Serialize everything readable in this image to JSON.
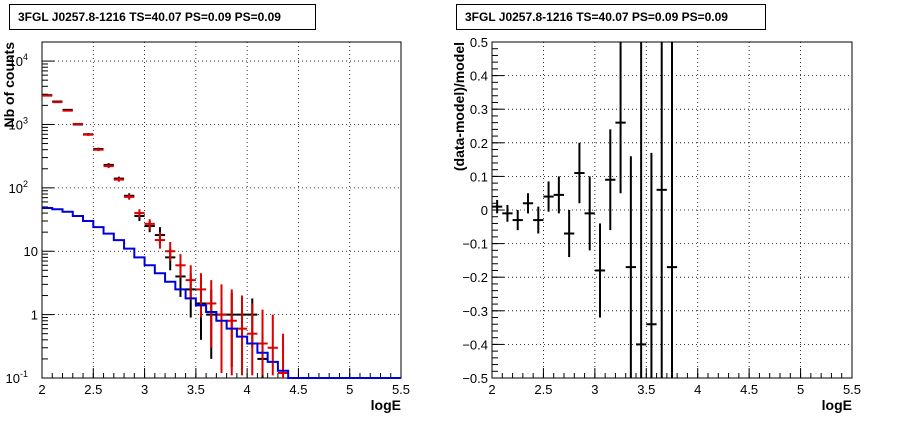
{
  "chart_data": [
    {
      "type": "line",
      "title": "3FGL J0257.8-1216 TS=40.07 PS=0.09 PS=0.09",
      "xlabel": "logE",
      "ylabel": "Nb of counts",
      "xlim": [
        2,
        5.5
      ],
      "ylim": [
        0.1,
        20000
      ],
      "yscale": "log",
      "grid": true,
      "x_ticks": [
        "2",
        "2.5",
        "3",
        "3.5",
        "4",
        "4.5",
        "5",
        "5.5"
      ],
      "y_ticks": [
        {
          "value": 0.1,
          "label": "10",
          "exp": "-1"
        },
        {
          "value": 1,
          "label": "1",
          "exp": ""
        },
        {
          "value": 10,
          "label": "10",
          "exp": ""
        },
        {
          "value": 100,
          "label": "10",
          "exp": "2"
        },
        {
          "value": 1000,
          "label": "10",
          "exp": "3"
        },
        {
          "value": 10000,
          "label": "10",
          "exp": "4"
        }
      ],
      "series": [
        {
          "kind": "errorbar",
          "color": "#000000",
          "x": [
            2.05,
            2.15,
            2.25,
            2.35,
            2.45,
            2.55,
            2.65,
            2.75,
            2.85,
            2.95,
            3.05,
            3.15,
            3.25,
            3.35,
            3.45,
            3.55,
            3.65,
            3.75,
            3.85,
            3.95,
            4.05,
            4.15
          ],
          "y": [
            2900,
            2300,
            1700,
            1000,
            700,
            410,
            230,
            140,
            75,
            36,
            25,
            18,
            8,
            4,
            2.5,
            1.5,
            1,
            1,
            1,
            1,
            1,
            0.2
          ],
          "ylo": [
            2850,
            2250,
            1650,
            970,
            670,
            390,
            215,
            130,
            68,
            30,
            20,
            13,
            5,
            1.9,
            0.9,
            0.4,
            0.2,
            0.15,
            0.15,
            0.4,
            0.3,
            0.1
          ],
          "yhi": [
            2950,
            2350,
            1750,
            1030,
            730,
            430,
            245,
            150,
            82,
            42,
            30,
            24,
            11,
            6,
            4.5,
            3.5,
            2.5,
            2.2,
            2.2,
            1.8,
            1.8,
            0.5
          ]
        },
        {
          "kind": "errorbar",
          "color": "#dd0000",
          "x": [
            2.05,
            2.15,
            2.25,
            2.35,
            2.45,
            2.55,
            2.65,
            2.75,
            2.85,
            2.95,
            3.05,
            3.15,
            3.25,
            3.35,
            3.45,
            3.55,
            3.65,
            3.75,
            3.85,
            3.95,
            4.05,
            4.15,
            4.25,
            4.35
          ],
          "y": [
            2850,
            2250,
            1650,
            1020,
            690,
            400,
            220,
            135,
            72,
            40,
            27,
            15,
            10,
            6,
            3.5,
            2.5,
            1.5,
            1,
            0.8,
            0.6,
            0.5,
            0.35,
            0.3,
            0.12
          ],
          "ylo": [
            2800,
            2200,
            1600,
            990,
            660,
            380,
            205,
            125,
            65,
            34,
            22,
            11,
            7,
            3.8,
            1.7,
            0.9,
            0.3,
            0.12,
            0.11,
            0.11,
            0.11,
            0.11,
            0.11,
            0.1
          ],
          "yhi": [
            2900,
            2300,
            1700,
            1050,
            720,
            420,
            235,
            145,
            79,
            46,
            32,
            20,
            14,
            9,
            6,
            4.5,
            3.5,
            3,
            2.5,
            2,
            1.5,
            1.2,
            1,
            0.5
          ]
        },
        {
          "kind": "step",
          "color": "#0000dd",
          "x_edges": [
            2.0,
            2.1,
            2.2,
            2.3,
            2.4,
            2.5,
            2.6,
            2.7,
            2.8,
            2.9,
            3.0,
            3.1,
            3.2,
            3.3,
            3.4,
            3.5,
            3.6,
            3.7,
            3.8,
            3.9,
            4.0,
            4.1,
            4.2,
            4.3,
            4.4,
            4.5,
            5.5
          ],
          "values": [
            48,
            46,
            42,
            36,
            30,
            24,
            19,
            15,
            11,
            8,
            6,
            4.5,
            3.3,
            2.5,
            1.8,
            1.4,
            1.1,
            0.8,
            0.6,
            0.45,
            0.35,
            0.25,
            0.18,
            0.13,
            0.1,
            0.1
          ]
        }
      ]
    },
    {
      "type": "scatter",
      "title": "3FGL J0257.8-1216 TS=40.07 PS=0.09 PS=0.09",
      "xlabel": "logE",
      "ylabel": "(data-model)/model",
      "xlim": [
        2,
        5.5
      ],
      "ylim": [
        -0.5,
        0.5
      ],
      "grid": true,
      "x_ticks": [
        "2",
        "2.5",
        "3",
        "3.5",
        "4",
        "4.5",
        "5",
        "5.5"
      ],
      "y_ticks": [
        "−0.5",
        "−0.4",
        "−0.3",
        "−0.2",
        "−0.1",
        "0",
        "0.1",
        "0.2",
        "0.3",
        "0.4",
        "0.5"
      ],
      "series": [
        {
          "kind": "errorbar",
          "color": "#000000",
          "x": [
            2.05,
            2.15,
            2.25,
            2.35,
            2.45,
            2.55,
            2.65,
            2.75,
            2.85,
            2.95,
            3.05,
            3.15,
            3.25,
            3.35,
            3.45,
            3.55,
            3.65,
            3.75
          ],
          "y": [
            0.01,
            -0.01,
            -0.03,
            0.02,
            -0.03,
            0.04,
            0.045,
            -0.07,
            0.11,
            -0.01,
            -0.18,
            0.09,
            0.26,
            -0.17,
            -0.4,
            -0.34,
            0.06,
            -0.17
          ],
          "ylo": [
            -0.01,
            -0.035,
            -0.06,
            -0.01,
            -0.07,
            -0.005,
            -0.01,
            -0.14,
            0.02,
            -0.12,
            -0.32,
            -0.06,
            0.05,
            -0.5,
            -0.5,
            -0.5,
            -0.5,
            -0.5
          ],
          "yhi": [
            0.03,
            0.015,
            0.0,
            0.05,
            0.01,
            0.085,
            0.1,
            0.0,
            0.2,
            0.1,
            -0.04,
            0.24,
            0.5,
            0.16,
            0.5,
            0.17,
            0.5,
            0.5
          ]
        }
      ]
    }
  ]
}
